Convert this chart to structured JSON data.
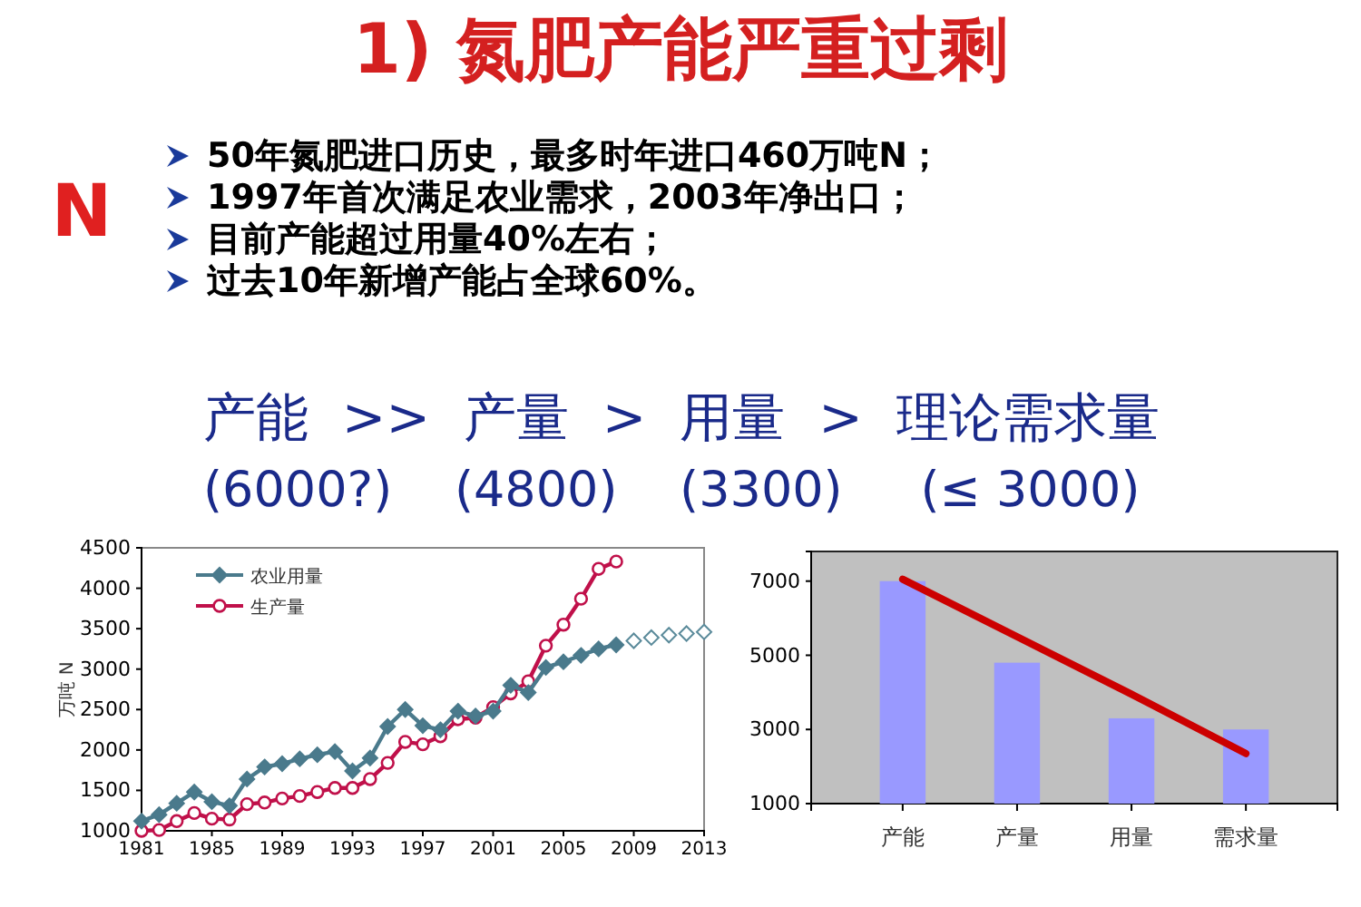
{
  "chart_data": [
    {
      "type": "line",
      "title": "1) 氮肥产能严重过剩",
      "ylabel": "万吨 N",
      "annotations": [
        "N",
        "50年氮肥进口历史，最多时年进口460万吨N；",
        "1997年首次满足农业需求，2003年净出口；",
        "目前产能超过用量40%左右；",
        "过去10年新增产能占全球60%。",
        "产能  >>  产量  >  用量  >  理论需求量",
        "(6000?)    (4800)    (3300)     (≤ 3000)"
      ],
      "xlim": [
        1981,
        2013
      ],
      "xticks": [
        1981,
        1985,
        1989,
        1993,
        1997,
        2001,
        2005,
        2009,
        2013
      ],
      "ylim": [
        1000,
        4500
      ],
      "yticks": [
        1000,
        1500,
        2000,
        2500,
        3000,
        3500,
        4000,
        4500
      ],
      "grid": false,
      "legend": "top left",
      "series": [
        {
          "name": "农业用量",
          "color": "#4a7a8c",
          "marker": "diamond",
          "x": [
            1981,
            1982,
            1983,
            1984,
            1985,
            1986,
            1987,
            1988,
            1989,
            1990,
            1991,
            1992,
            1993,
            1994,
            1995,
            1996,
            1997,
            1998,
            1999,
            2000,
            2001,
            2002,
            2003,
            2004,
            2005,
            2006,
            2007,
            2008
          ],
          "values": [
            1120,
            1200,
            1340,
            1480,
            1360,
            1310,
            1640,
            1790,
            1830,
            1890,
            1940,
            1980,
            1740,
            1900,
            2290,
            2500,
            2300,
            2250,
            2480,
            2420,
            2480,
            2800,
            2710,
            3020,
            3090,
            3170,
            3250,
            3300
          ]
        },
        {
          "name": "生产量",
          "color": "#c0104a",
          "marker": "circle",
          "x": [
            1981,
            1982,
            1983,
            1984,
            1985,
            1986,
            1987,
            1988,
            1989,
            1990,
            1991,
            1992,
            1993,
            1994,
            1995,
            1996,
            1997,
            1998,
            1999,
            2000,
            2001,
            2002,
            2003,
            2004,
            2005,
            2006,
            2007,
            2008
          ],
          "values": [
            1000,
            1010,
            1120,
            1220,
            1150,
            1140,
            1330,
            1350,
            1400,
            1430,
            1480,
            1530,
            1530,
            1640,
            1840,
            2100,
            2070,
            2170,
            2380,
            2400,
            2530,
            2700,
            2850,
            3290,
            3550,
            3870,
            4240,
            4330
          ]
        },
        {
          "type": "scatter",
          "color": "#5a8a9a",
          "marker": "diamond",
          "x": [
            2009,
            2010,
            2011,
            2012,
            2013
          ],
          "values": [
            3350,
            3390,
            3420,
            3440,
            3460
          ]
        }
      ]
    },
    {
      "type": "bar",
      "categories": [
        "产能",
        "产量",
        "用量",
        "需求量"
      ],
      "ylim": [
        1000,
        7800
      ],
      "yticks": [
        1000,
        3000,
        5000,
        7000
      ],
      "grid": false,
      "series": [
        {
          "color": "#9999ff",
          "values": [
            7000,
            4800,
            3300,
            3000
          ]
        },
        {
          "type": "line",
          "color": "#cc0000",
          "marker": "none",
          "values": [
            7050,
            5500,
            3950,
            2350
          ]
        }
      ]
    }
  ]
}
